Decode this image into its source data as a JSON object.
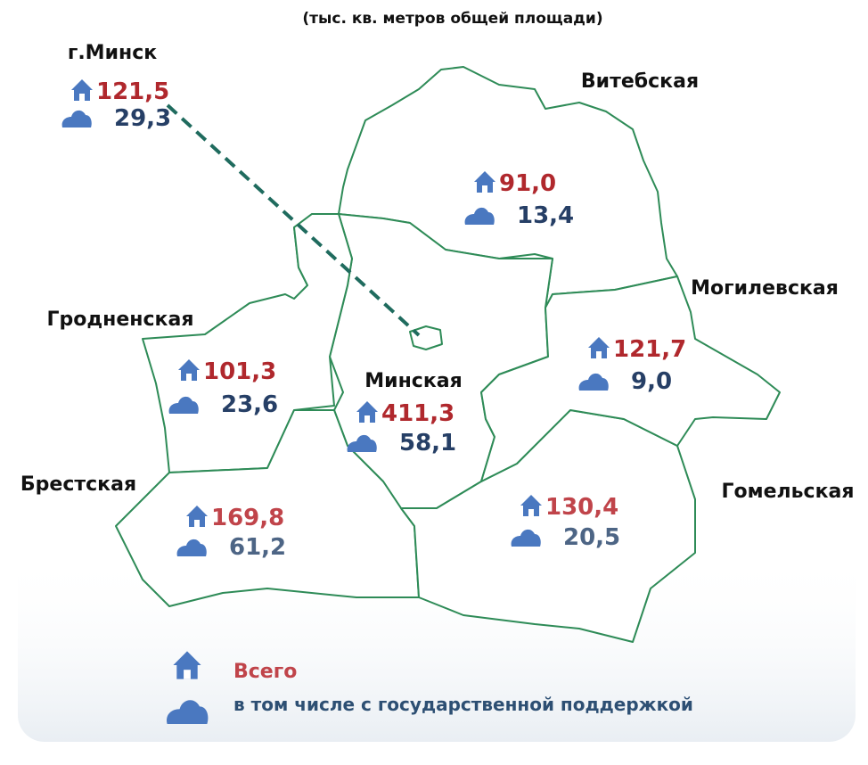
{
  "subtitle": "(тыс. кв. метров общей площади)",
  "regions": [
    {
      "name": "г.Минск",
      "total": "121,5",
      "supported": "29,3"
    },
    {
      "name": "Витебская",
      "total": "91,0",
      "supported": "13,4"
    },
    {
      "name": "Могилевская",
      "total": "121,7",
      "supported": "9,0"
    },
    {
      "name": "Гродненская",
      "total": "101,3",
      "supported": "23,6"
    },
    {
      "name": "Минская",
      "total": "411,3",
      "supported": "58,1"
    },
    {
      "name": "Брестская",
      "total": "169,8",
      "supported": "61,2"
    },
    {
      "name": "Гомельская",
      "total": "130,4",
      "supported": "20,5"
    }
  ],
  "legend": {
    "total": "Всего",
    "supported": "в том числе с государственной поддержкой"
  }
}
